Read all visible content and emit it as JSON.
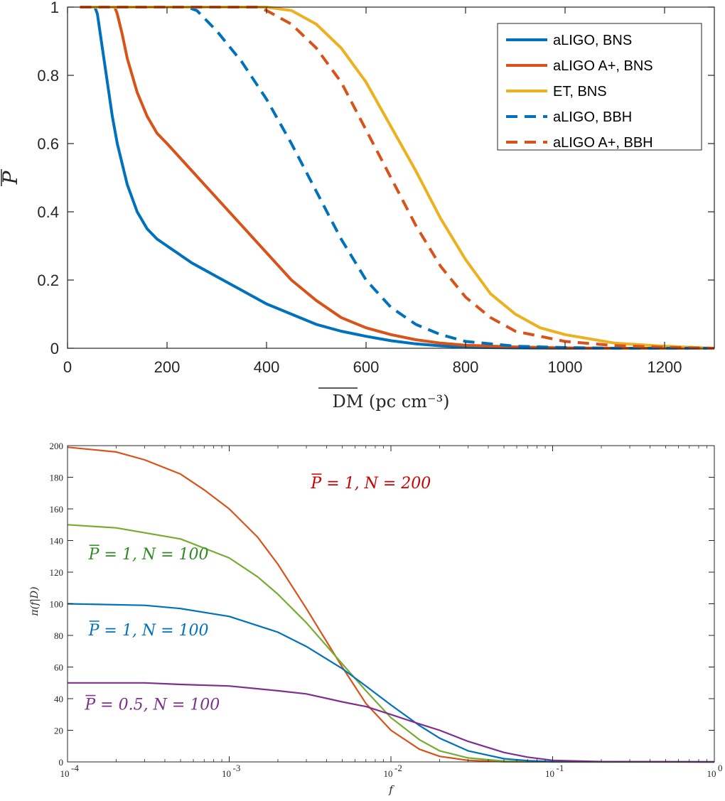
{
  "chart_data": [
    {
      "type": "line",
      "title": "",
      "xlabel": "DM (pc cm⁻³)",
      "ylabel": "P",
      "xlim": [
        0,
        1300
      ],
      "ylim": [
        0,
        1
      ],
      "xticks": [
        "0",
        "200",
        "400",
        "600",
        "800",
        "1000",
        "1200"
      ],
      "yticks": [
        "0",
        "0.2",
        "0.4",
        "0.6",
        "0.8",
        "1"
      ],
      "grid": false,
      "legend_placement": "top-right",
      "series": [
        {
          "name": "aLIGO, BNS",
          "color": "#0072BD",
          "dash": "solid",
          "x": [
            25,
            55,
            60,
            70,
            80,
            90,
            100,
            120,
            140,
            160,
            180,
            200,
            250,
            300,
            350,
            400,
            450,
            500,
            550,
            600,
            650,
            700,
            750,
            800,
            900,
            1000,
            1300
          ],
          "y": [
            1,
            1,
            0.98,
            0.88,
            0.78,
            0.68,
            0.6,
            0.48,
            0.4,
            0.35,
            0.32,
            0.3,
            0.25,
            0.21,
            0.17,
            0.13,
            0.1,
            0.07,
            0.05,
            0.035,
            0.022,
            0.013,
            0.007,
            0.003,
            0.001,
            0.0,
            0.0
          ]
        },
        {
          "name": "aLIGO A+, BNS",
          "color": "#D95319",
          "dash": "solid",
          "x": [
            25,
            95,
            100,
            110,
            120,
            140,
            160,
            180,
            200,
            250,
            300,
            350,
            400,
            450,
            500,
            550,
            600,
            650,
            700,
            750,
            800,
            900,
            1000,
            1100,
            1300
          ],
          "y": [
            1,
            1,
            0.98,
            0.92,
            0.85,
            0.75,
            0.68,
            0.63,
            0.6,
            0.52,
            0.44,
            0.36,
            0.28,
            0.2,
            0.14,
            0.09,
            0.06,
            0.04,
            0.025,
            0.015,
            0.009,
            0.004,
            0.001,
            0.0,
            0.0
          ]
        },
        {
          "name": "ET, BNS",
          "color": "#EDB120",
          "dash": "solid",
          "x": [
            25,
            400,
            450,
            500,
            550,
            600,
            650,
            700,
            750,
            800,
            850,
            900,
            950,
            1000,
            1100,
            1200,
            1300
          ],
          "y": [
            1,
            1,
            0.99,
            0.95,
            0.88,
            0.78,
            0.65,
            0.52,
            0.38,
            0.26,
            0.16,
            0.1,
            0.06,
            0.04,
            0.015,
            0.006,
            0.0
          ]
        },
        {
          "name": "aLIGO, BBH",
          "color": "#0072BD",
          "dash": "dashed",
          "x": [
            25,
            240,
            260,
            300,
            350,
            400,
            450,
            500,
            550,
            600,
            650,
            700,
            750,
            800,
            900,
            1000,
            1100,
            1300
          ],
          "y": [
            1,
            1,
            0.99,
            0.93,
            0.84,
            0.73,
            0.6,
            0.46,
            0.32,
            0.2,
            0.12,
            0.07,
            0.04,
            0.02,
            0.006,
            0.002,
            0.0,
            0.0
          ]
        },
        {
          "name": "aLIGO A+, BBH",
          "color": "#D95319",
          "dash": "dashed",
          "x": [
            25,
            380,
            400,
            450,
            500,
            550,
            600,
            650,
            700,
            750,
            800,
            850,
            900,
            1000,
            1100,
            1200,
            1300
          ],
          "y": [
            1,
            1,
            0.99,
            0.95,
            0.88,
            0.78,
            0.64,
            0.5,
            0.36,
            0.24,
            0.15,
            0.09,
            0.05,
            0.02,
            0.008,
            0.003,
            0.0
          ]
        }
      ]
    },
    {
      "type": "line",
      "title": "",
      "xlabel": "f",
      "ylabel": "π(f|D)",
      "xscale": "log",
      "xlim": [
        0.0001,
        1
      ],
      "ylim": [
        0,
        200
      ],
      "xticks": [
        "10",
        "10",
        "10",
        "10",
        "10"
      ],
      "xtick_exponents": [
        "-4",
        "-3",
        "-2",
        "-1",
        "0"
      ],
      "yticks": [
        "0",
        "20",
        "40",
        "60",
        "80",
        "100",
        "120",
        "140",
        "160",
        "180",
        "200"
      ],
      "grid": false,
      "annotations": [
        {
          "text": "P = 1, N = 200",
          "color": "#CC0000",
          "x": 0.0032,
          "y": 173
        },
        {
          "text": "P = 1, N = 100",
          "color": "#2E8B22",
          "x": 0.000135,
          "y": 128
        },
        {
          "text": "P = 1, N = 100",
          "color": "#0072BD",
          "x": 0.000135,
          "y": 80
        },
        {
          "text": "P = 0.5, N = 100",
          "color": "#7E2F8E",
          "x": 0.000128,
          "y": 33
        }
      ],
      "series": [
        {
          "color": "#D95319",
          "x": [
            0.0001,
            0.0002,
            0.0003,
            0.0005,
            0.0007,
            0.001,
            0.0015,
            0.002,
            0.003,
            0.005,
            0.007,
            0.01,
            0.015,
            0.02,
            0.03,
            0.05,
            0.1,
            1
          ],
          "y": [
            199,
            196,
            191,
            182,
            172,
            160,
            142,
            125,
            97,
            60,
            37,
            20,
            8,
            3.5,
            1,
            0.1,
            0,
            0
          ]
        },
        {
          "color": "#77AC30",
          "x": [
            0.0001,
            0.0002,
            0.0005,
            0.001,
            0.0015,
            0.002,
            0.003,
            0.005,
            0.007,
            0.01,
            0.015,
            0.02,
            0.03,
            0.05,
            0.1,
            1
          ],
          "y": [
            150,
            148,
            141,
            129,
            117,
            106,
            88,
            62,
            45,
            28,
            14,
            7,
            2.5,
            0.5,
            0,
            0
          ]
        },
        {
          "color": "#0072BD",
          "x": [
            0.0001,
            0.0003,
            0.0005,
            0.001,
            0.002,
            0.003,
            0.005,
            0.007,
            0.01,
            0.015,
            0.02,
            0.03,
            0.05,
            0.07,
            0.1,
            1
          ],
          "y": [
            100,
            99,
            97,
            92,
            82,
            73,
            59,
            48,
            36,
            23,
            15,
            7,
            2,
            0.8,
            0.2,
            0
          ]
        },
        {
          "color": "#7E2F8E",
          "x": [
            0.0001,
            0.0003,
            0.0005,
            0.001,
            0.002,
            0.003,
            0.005,
            0.007,
            0.01,
            0.015,
            0.02,
            0.03,
            0.05,
            0.07,
            0.1,
            0.2,
            1
          ],
          "y": [
            50,
            50,
            49,
            48,
            45,
            43,
            38,
            35,
            30,
            24,
            20,
            13,
            6,
            3,
            1,
            0.2,
            0
          ]
        }
      ]
    }
  ]
}
